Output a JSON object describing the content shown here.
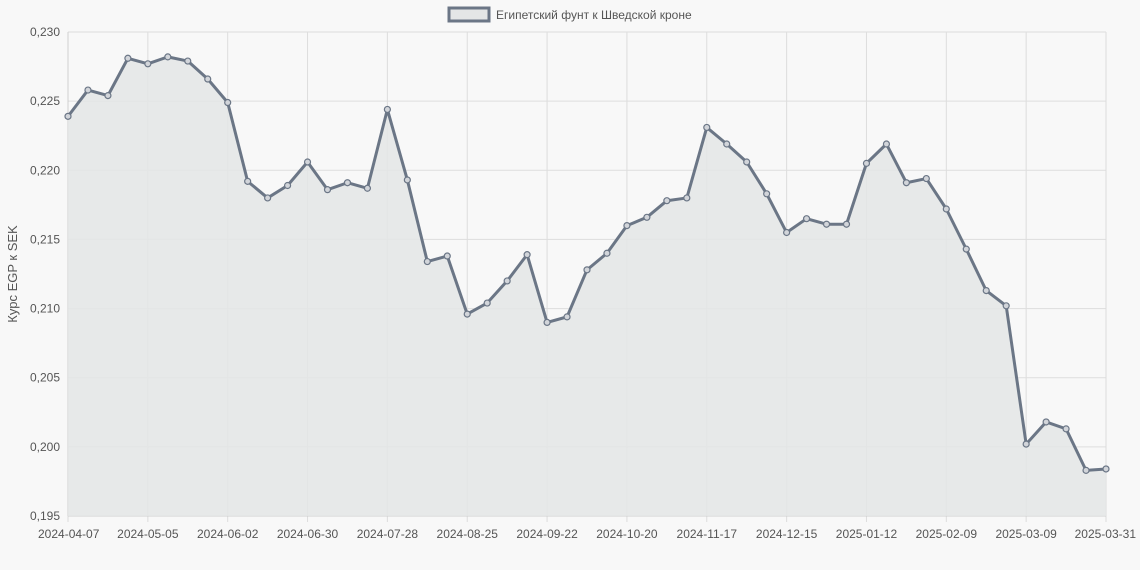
{
  "chart_data": {
    "type": "area",
    "ylabel": "Курс EGP к SEK",
    "ylim": [
      0.195,
      0.23
    ],
    "y_ticks": [
      "0,195",
      "0,200",
      "0,205",
      "0,210",
      "0,215",
      "0,220",
      "0,225",
      "0,230"
    ],
    "x_tick_labels": [
      "2024-04-07",
      "2024-05-05",
      "2024-06-02",
      "2024-06-30",
      "2024-07-28",
      "2024-08-25",
      "2024-09-22",
      "2024-10-20",
      "2024-11-17",
      "2024-12-15",
      "2025-01-12",
      "2025-02-09",
      "2025-03-09",
      "2025-03-31"
    ],
    "grid": true,
    "legend_position": "top-center",
    "colors": {
      "line": "#6b7686",
      "fill": "#e4e6e6",
      "grid": "#dddddd",
      "background": "#f8f8f8"
    },
    "series": [
      {
        "name": "Египетский фунт к Шведской кроне",
        "values": [
          0.2239,
          0.2258,
          0.2254,
          0.2281,
          0.2277,
          0.2282,
          0.2279,
          0.2266,
          0.2249,
          0.2192,
          0.218,
          0.2189,
          0.2206,
          0.2186,
          0.2191,
          0.2187,
          0.2244,
          0.2193,
          0.2134,
          0.2138,
          0.2096,
          0.2104,
          0.212,
          0.2139,
          0.209,
          0.2094,
          0.2128,
          0.214,
          0.216,
          0.2166,
          0.2178,
          0.218,
          0.2231,
          0.2219,
          0.2206,
          0.2183,
          0.2155,
          0.2165,
          0.2161,
          0.2161,
          0.2205,
          0.2219,
          0.2191,
          0.2194,
          0.2172,
          0.2143,
          0.2113,
          0.2102,
          0.2002,
          0.2018,
          0.2013,
          0.1983,
          0.1984
        ]
      }
    ]
  }
}
